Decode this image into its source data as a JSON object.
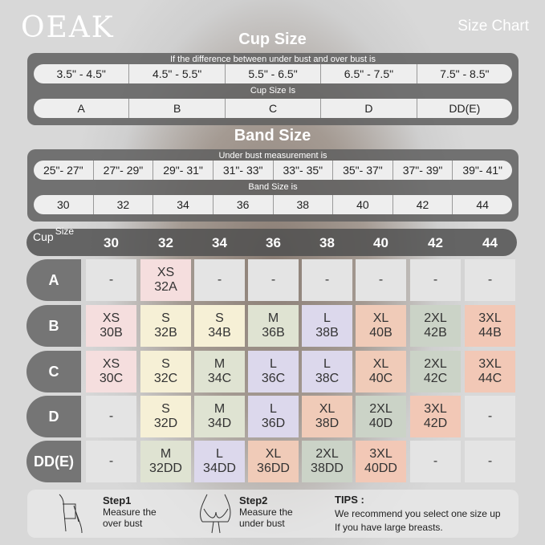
{
  "brand": "OEAK",
  "title": "Size Chart",
  "cup_section": {
    "heading": "Cup Size",
    "diff_label": "If the  difference between under bust and over bust is",
    "ranges": [
      "3.5\" - 4.5\"",
      "4.5\" - 5.5\"",
      "5.5\" - 6.5\"",
      "6.5\" - 7.5\"",
      "7.5\" - 8.5\""
    ],
    "cup_label": "Cup Size Is",
    "cups": [
      "A",
      "B",
      "C",
      "D",
      "DD(E)"
    ]
  },
  "band_section": {
    "heading": "Band Size",
    "measure_label": "Under bust measurement is",
    "ranges": [
      "25\"- 27\"",
      "27\"- 29\"",
      "29\"- 31\"",
      "31\"- 33\"",
      "33\"- 35\"",
      "35\"- 37\"",
      "37\"- 39\"",
      "39\"- 41\""
    ],
    "band_label": "Band Size is",
    "bands": [
      "30",
      "32",
      "34",
      "36",
      "38",
      "40",
      "42",
      "44"
    ]
  },
  "grid": {
    "corner_cup": "Cup",
    "corner_size": "Size",
    "columns": [
      "30",
      "32",
      "34",
      "36",
      "38",
      "40",
      "42",
      "44"
    ],
    "rows": [
      {
        "cup": "A",
        "cells": [
          [
            "-"
          ],
          [
            "XS",
            "32A"
          ],
          [
            "-"
          ],
          [
            "-"
          ],
          [
            "-"
          ],
          [
            "-"
          ],
          [
            "-"
          ],
          [
            "-"
          ]
        ]
      },
      {
        "cup": "B",
        "cells": [
          [
            "XS",
            "30B"
          ],
          [
            "S",
            "32B"
          ],
          [
            "S",
            "34B"
          ],
          [
            "M",
            "36B"
          ],
          [
            "L",
            "38B"
          ],
          [
            "XL",
            "40B"
          ],
          [
            "2XL",
            "42B"
          ],
          [
            "3XL",
            "44B"
          ]
        ]
      },
      {
        "cup": "C",
        "cells": [
          [
            "XS",
            "30C"
          ],
          [
            "S",
            "32C"
          ],
          [
            "M",
            "34C"
          ],
          [
            "L",
            "36C"
          ],
          [
            "L",
            "38C"
          ],
          [
            "XL",
            "40C"
          ],
          [
            "2XL",
            "42C"
          ],
          [
            "3XL",
            "44C"
          ]
        ]
      },
      {
        "cup": "D",
        "cells": [
          [
            "-"
          ],
          [
            "S",
            "32D"
          ],
          [
            "M",
            "34D"
          ],
          [
            "L",
            "36D"
          ],
          [
            "XL",
            "38D"
          ],
          [
            "2XL",
            "40D"
          ],
          [
            "3XL",
            "42D"
          ],
          [
            "-"
          ]
        ]
      },
      {
        "cup": "DD(E)",
        "cells": [
          [
            "-"
          ],
          [
            "M",
            "32DD"
          ],
          [
            "L",
            "34DD"
          ],
          [
            "XL",
            "36DD"
          ],
          [
            "2XL",
            "38DD"
          ],
          [
            "3XL",
            "40DD"
          ],
          [
            "-"
          ],
          [
            "-"
          ]
        ]
      }
    ]
  },
  "size_colors": {
    "-": "#e4e4e4",
    "XS": "#f5dede",
    "S": "#f6f0d6",
    "M": "#dfe3d2",
    "L": "#dcd8ec",
    "XL": "#f0cbb8",
    "2XL": "#cbd3c7",
    "3XL": "#f2c8b6"
  },
  "footer": {
    "step1_title": "Step1",
    "step1_l1": "Measure the",
    "step1_l2": "over bust",
    "step2_title": "Step2",
    "step2_l1": "Measure the",
    "step2_l2": "under bust",
    "tips_title": "TIPS :",
    "tips_l1": "We recommend you select one size up",
    "tips_l2": "If you have large breasts."
  }
}
